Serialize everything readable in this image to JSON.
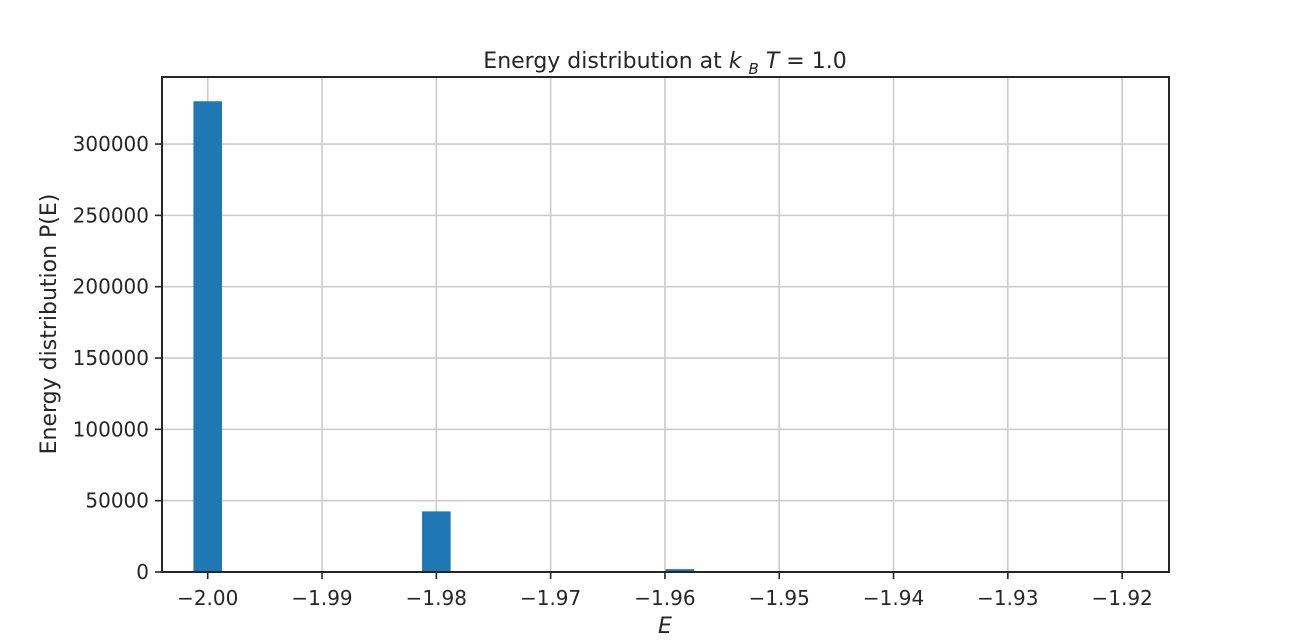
{
  "chart_data": {
    "type": "bar",
    "title_parts": {
      "prefix": "Energy distribution at ",
      "k": "k",
      "subscript": "B",
      "t": "T",
      "suffix": " = 1.0"
    },
    "xlabel": "E",
    "ylabel": "Energy distribution P(E)",
    "xlim": [
      -2.004,
      -1.9159
    ],
    "ylim": [
      0,
      347000
    ],
    "xticks": [
      -2.0,
      -1.99,
      -1.98,
      -1.97,
      -1.96,
      -1.95,
      -1.94,
      -1.93,
      -1.92
    ],
    "xtick_labels": [
      "−2.00",
      "−1.99",
      "−1.98",
      "−1.97",
      "−1.96",
      "−1.95",
      "−1.94",
      "−1.93",
      "−1.92"
    ],
    "yticks": [
      0,
      50000,
      100000,
      150000,
      200000,
      250000,
      300000
    ],
    "ytick_labels": [
      "0",
      "50000",
      "100000",
      "150000",
      "200000",
      "250000",
      "300000"
    ],
    "bin_width": 0.0025,
    "bars": [
      {
        "x": -2.0,
        "value": 330000
      },
      {
        "x": -1.98,
        "value": 42500
      },
      {
        "x": -1.9587,
        "value": 2000
      }
    ],
    "grid": true,
    "bar_color": "#1f77b4"
  }
}
